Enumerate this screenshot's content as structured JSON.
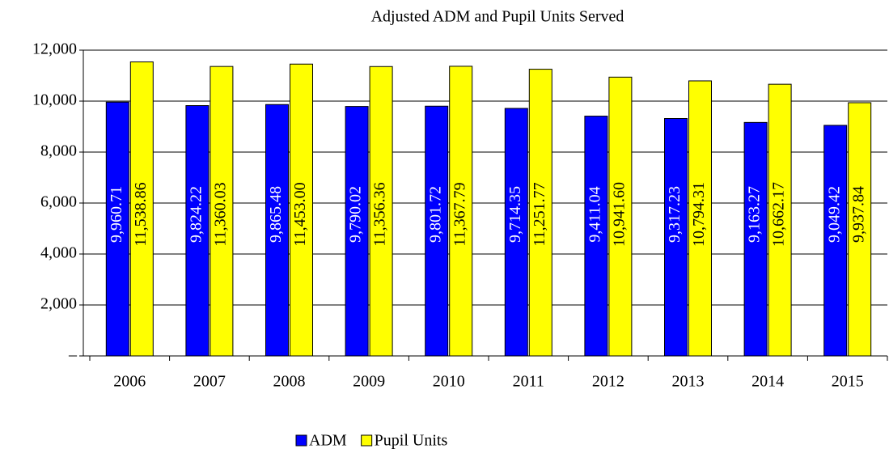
{
  "chart_data": {
    "type": "bar",
    "title": "Adjusted ADM and Pupil Units Served",
    "categories": [
      "2006",
      "2007",
      "2008",
      "2009",
      "2010",
      "2011",
      "2012",
      "2013",
      "2014",
      "2015"
    ],
    "series": [
      {
        "name": "ADM",
        "color": "#0000ff",
        "values": [
          9960.71,
          9824.22,
          9865.48,
          9790.02,
          9801.72,
          9714.35,
          9411.04,
          9317.23,
          9163.27,
          9049.42
        ],
        "value_labels": [
          "9,960.71",
          "9,824.22",
          "9,865.48",
          "9,790.02",
          "9,801.72",
          "9,714.35",
          "9,411.04",
          "9,317.23",
          "9,163.27",
          "9,049.42"
        ]
      },
      {
        "name": "Pupil Units",
        "color": "#ffff00",
        "values": [
          11538.86,
          11360.03,
          11453.0,
          11356.36,
          11367.79,
          11251.77,
          10941.6,
          10794.31,
          10662.17,
          9937.84
        ],
        "value_labels": [
          "11,538.86",
          "11,360.03",
          "11,453.00",
          "11,356.36",
          "11,367.79",
          "11,251.77",
          "10,941.60",
          "10,794.31",
          "10,662.17",
          "9,937.84"
        ]
      }
    ],
    "ylim": [
      0,
      12000
    ],
    "yticks": [
      {
        "value": 0,
        "label": "–"
      },
      {
        "value": 2000,
        "label": "2,000"
      },
      {
        "value": 4000,
        "label": "4,000"
      },
      {
        "value": 6000,
        "label": "6,000"
      },
      {
        "value": 8000,
        "label": "8,000"
      },
      {
        "value": 10000,
        "label": "10,000"
      },
      {
        "value": 12000,
        "label": "12,000"
      }
    ],
    "grid": true,
    "legend": "bottom"
  }
}
